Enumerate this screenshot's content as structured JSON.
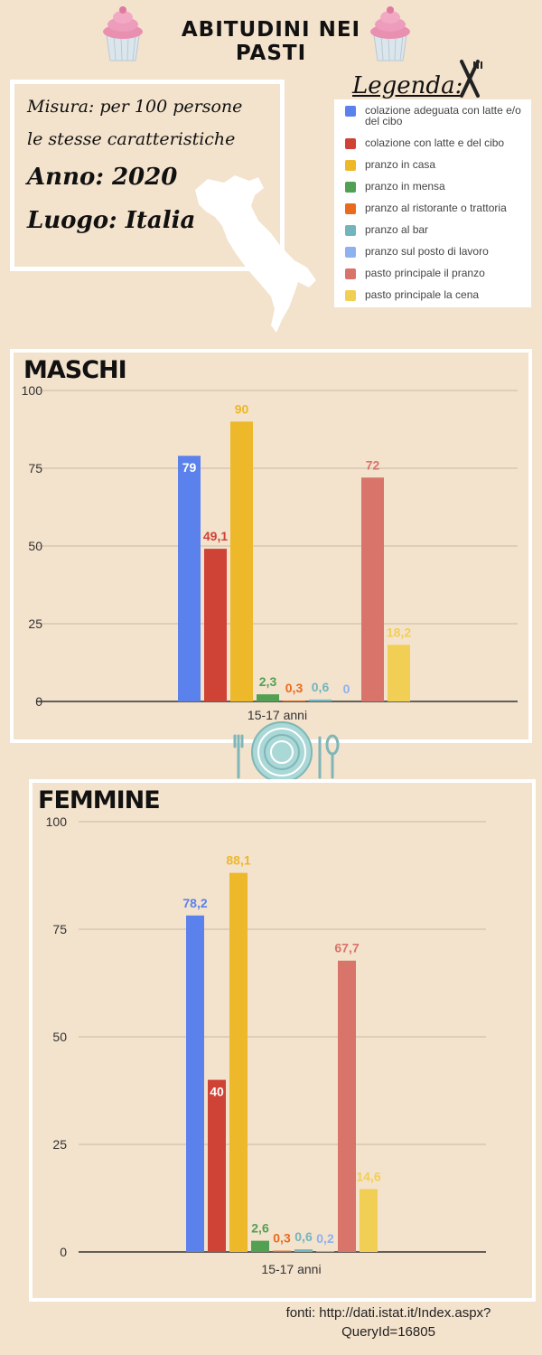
{
  "title": "ABITUDINI NEI PASTI",
  "info": {
    "misura_line1": "Misura: per 100 persone",
    "misura_line2": "le stesse caratteristiche",
    "anno": "Anno: 2020",
    "luogo": "Luogo: Italia"
  },
  "legend": {
    "title": "Legenda:",
    "items": [
      {
        "label": "colazione adeguata con latte e/o del cibo",
        "color": "#5b82ec"
      },
      {
        "label": "colazione con latte e del cibo",
        "color": "#cf4236"
      },
      {
        "label": "pranzo in casa",
        "color": "#edb829"
      },
      {
        "label": "pranzo in mensa",
        "color": "#52a054"
      },
      {
        "label": "pranzo al ristorante o trattoria",
        "color": "#e86b1e"
      },
      {
        "label": "pranzo al bar",
        "color": "#73b5bd"
      },
      {
        "label": "pranzo sul posto di lavoro",
        "color": "#8eb1f0"
      },
      {
        "label": "pasto principale il pranzo",
        "color": "#d8746a"
      },
      {
        "label": "pasto principale la cena",
        "color": "#f1cf55"
      }
    ]
  },
  "chart_data": [
    {
      "type": "bar",
      "title": "MASCHI",
      "categories": [
        "15-17 anni"
      ],
      "ylim": [
        0,
        100
      ],
      "yticks": [
        0,
        25,
        50,
        75,
        100
      ],
      "grid": true,
      "series": [
        {
          "name": "colazione adeguata con latte e/o del cibo",
          "values": [
            79
          ],
          "label": "79",
          "color": "#5b82ec"
        },
        {
          "name": "colazione con latte e del cibo",
          "values": [
            49.1
          ],
          "label": "49,1",
          "color": "#cf4236"
        },
        {
          "name": "pranzo in casa",
          "values": [
            90
          ],
          "label": "90",
          "color": "#edb829"
        },
        {
          "name": "pranzo in mensa",
          "values": [
            2.3
          ],
          "label": "2,3",
          "color": "#52a054"
        },
        {
          "name": "pranzo al ristorante o trattoria",
          "values": [
            0.3
          ],
          "label": "0,3",
          "color": "#e86b1e"
        },
        {
          "name": "pranzo al bar",
          "values": [
            0.6
          ],
          "label": "0,6",
          "color": "#73b5bd"
        },
        {
          "name": "pranzo sul posto di lavoro",
          "values": [
            0
          ],
          "label": "0",
          "color": "#8eb1f0"
        },
        {
          "name": "pasto principale il pranzo",
          "values": [
            72
          ],
          "label": "72",
          "color": "#d8746a"
        },
        {
          "name": "pasto principale la cena",
          "values": [
            18.2
          ],
          "label": "18,2",
          "color": "#f1cf55"
        }
      ]
    },
    {
      "type": "bar",
      "title": "FEMMINE",
      "categories": [
        "15-17 anni"
      ],
      "ylim": [
        0,
        100
      ],
      "yticks": [
        0,
        25,
        50,
        75,
        100
      ],
      "grid": true,
      "series": [
        {
          "name": "colazione adeguata con latte e/o del cibo",
          "values": [
            78.2
          ],
          "label": "78,2",
          "color": "#5b82ec"
        },
        {
          "name": "colazione con latte e del cibo",
          "values": [
            40
          ],
          "label": "40",
          "color": "#cf4236"
        },
        {
          "name": "pranzo in casa",
          "values": [
            88.1
          ],
          "label": "88,1",
          "color": "#edb829"
        },
        {
          "name": "pranzo in mensa",
          "values": [
            2.6
          ],
          "label": "2,6",
          "color": "#52a054"
        },
        {
          "name": "pranzo al ristorante o trattoria",
          "values": [
            0.3
          ],
          "label": "0,3",
          "color": "#e86b1e"
        },
        {
          "name": "pranzo al bar",
          "values": [
            0.6
          ],
          "label": "0,6",
          "color": "#73b5bd"
        },
        {
          "name": "pranzo sul posto di lavoro",
          "values": [
            0.2
          ],
          "label": "0,2",
          "color": "#8eb1f0"
        },
        {
          "name": "pasto principale il pranzo",
          "values": [
            67.7
          ],
          "label": "67,7",
          "color": "#d8746a"
        },
        {
          "name": "pasto principale la cena",
          "values": [
            14.6
          ],
          "label": "14,6",
          "color": "#f1cf55"
        }
      ]
    }
  ],
  "source": {
    "line1": "fonti: http://dati.istat.it/Index.aspx?",
    "line2": "QueryId=16805"
  }
}
